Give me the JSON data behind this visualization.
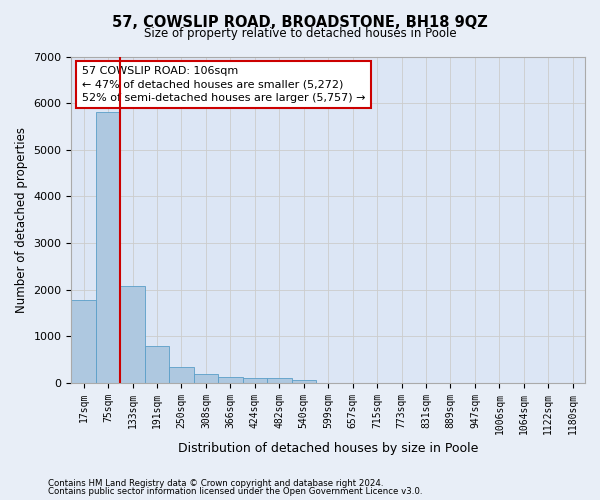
{
  "title1": "57, COWSLIP ROAD, BROADSTONE, BH18 9QZ",
  "title2": "Size of property relative to detached houses in Poole",
  "xlabel": "Distribution of detached houses by size in Poole",
  "ylabel": "Number of detached properties",
  "categories": [
    "17sqm",
    "75sqm",
    "133sqm",
    "191sqm",
    "250sqm",
    "308sqm",
    "366sqm",
    "424sqm",
    "482sqm",
    "540sqm",
    "599sqm",
    "657sqm",
    "715sqm",
    "773sqm",
    "831sqm",
    "889sqm",
    "947sqm",
    "1006sqm",
    "1064sqm",
    "1122sqm",
    "1180sqm"
  ],
  "values": [
    1780,
    5800,
    2080,
    800,
    340,
    195,
    125,
    105,
    95,
    65,
    0,
    0,
    0,
    0,
    0,
    0,
    0,
    0,
    0,
    0,
    0
  ],
  "bar_color": "#aec8e0",
  "bar_edge_color": "#5a9ec8",
  "vline_color": "#cc0000",
  "annotation_text": "57 COWSLIP ROAD: 106sqm\n← 47% of detached houses are smaller (5,272)\n52% of semi-detached houses are larger (5,757) →",
  "annotation_box_color": "#ffffff",
  "annotation_box_edge": "#cc0000",
  "ylim": [
    0,
    7000
  ],
  "yticks": [
    0,
    1000,
    2000,
    3000,
    4000,
    5000,
    6000,
    7000
  ],
  "grid_color": "#cccccc",
  "background_color": "#e8eef7",
  "plot_bg_color": "#dce6f5",
  "footnote1": "Contains HM Land Registry data © Crown copyright and database right 2024.",
  "footnote2": "Contains public sector information licensed under the Open Government Licence v3.0."
}
